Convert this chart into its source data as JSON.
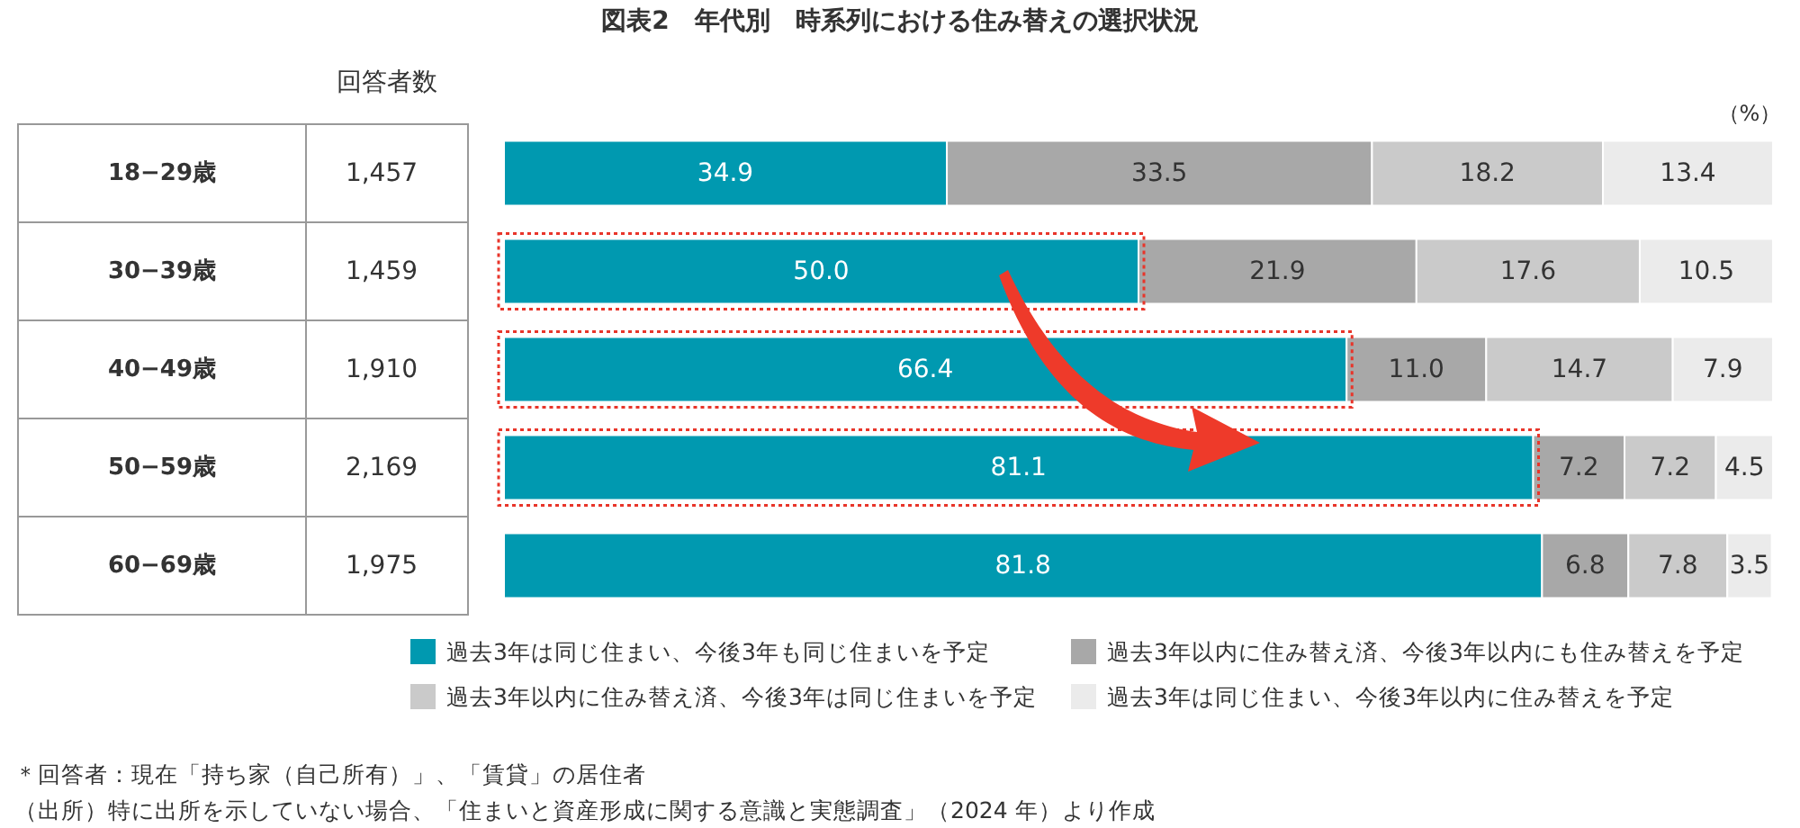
{
  "chart_data": {
    "type": "bar",
    "orientation": "horizontal",
    "stacked": true,
    "legend": "bottom",
    "title": "図表2　年代別　時系列における住み替えの選択状況",
    "xlabel": "（%）",
    "categories": [
      "18−29歳",
      "30−39歳",
      "40−49歳",
      "50−59歳",
      "60−69歳"
    ],
    "series": [
      {
        "name": "過去3年は同じ住まい、今後3年も同じ住まいを予定",
        "color": "#0099b0",
        "values": [
          34.9,
          50.0,
          66.4,
          81.1,
          81.8
        ],
        "value_labels": [
          "34.9",
          "50.0",
          "66.4",
          "81.1",
          "81.8"
        ]
      },
      {
        "name": "過去3年以内に住み替え済、今後3年以内にも住み替えを予定",
        "color": "#a8a8a8",
        "values": [
          33.5,
          21.9,
          11.0,
          7.2,
          6.8
        ],
        "value_labels": [
          "33.5",
          "21.9",
          "11.0",
          "7.2",
          "6.8"
        ]
      },
      {
        "name": "過去3年以内に住み替え済、今後3年は同じ住まいを予定",
        "color": "#cacaca",
        "values": [
          18.2,
          17.6,
          14.7,
          7.2,
          7.8
        ],
        "value_labels": [
          "18.2",
          "17.6",
          "14.7",
          "7.2",
          "7.8"
        ]
      },
      {
        "name": "過去3年は同じ住まい、今後3年以内に住み替えを予定",
        "color": "#ebebeb",
        "values": [
          13.4,
          10.5,
          7.9,
          4.5,
          3.5
        ],
        "value_labels": [
          "13.4",
          "10.5",
          "7.9",
          "4.5",
          "3.5"
        ]
      }
    ],
    "annotations": [
      "回答者数",
      "1,457",
      "1,459",
      "1,910",
      "2,169",
      "1,975",
      "＊回答者：現在「持ち家（自己所有）」、「賃貸」の居住者",
      "（出所）特に出所を示していない場合、「住まいと資産形成に関する意識と実態調査」（2024 年）より作成"
    ]
  }
}
